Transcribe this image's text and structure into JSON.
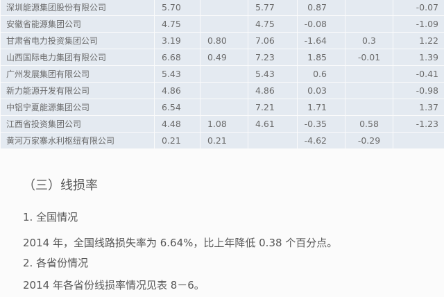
{
  "table": {
    "rows": [
      {
        "name": "深圳能源集团股份有限公司",
        "c1": "5.70",
        "c2": "",
        "c3": "5.77",
        "c4": "0.87",
        "c5": "",
        "c6": "-0.07"
      },
      {
        "name": "安徽省能源集团公司",
        "c1": "4.75",
        "c2": "",
        "c3": "4.75",
        "c4": "-0.08",
        "c5": "",
        "c6": "-1.09"
      },
      {
        "name": "甘肃省电力投资集团公司",
        "c1": "3.19",
        "c2": "0.80",
        "c3": "7.06",
        "c4": "-1.64",
        "c5": "0.3",
        "c6": "1.22"
      },
      {
        "name": "山西国际电力集团有限公司",
        "c1": "6.68",
        "c2": "0.49",
        "c3": "7.23",
        "c4": "1.85",
        "c5": "-0.01",
        "c6": "1.39"
      },
      {
        "name": "广州发展集团有限公司",
        "c1": "5.43",
        "c2": "",
        "c3": "5.43",
        "c4": "0.6",
        "c5": "",
        "c6": "-0.41"
      },
      {
        "name": "新力能源开发有限公司",
        "c1": "4.86",
        "c2": "",
        "c3": "4.86",
        "c4": "0.03",
        "c5": "",
        "c6": "-0.98"
      },
      {
        "name": "中铝宁夏能源集团公司",
        "c1": "6.54",
        "c2": "",
        "c3": "7.21",
        "c4": "1.71",
        "c5": "",
        "c6": "1.37"
      },
      {
        "name": "江西省投资集团公司",
        "c1": "4.48",
        "c2": "1.08",
        "c3": "4.61",
        "c4": "-0.35",
        "c5": "0.58",
        "c6": "-1.23"
      },
      {
        "name": "黄河万家寨水利枢纽有限公司",
        "c1": "0.21",
        "c2": "0.21",
        "c3": "",
        "c4": "-4.62",
        "c5": "-0.29",
        "c6": ""
      }
    ]
  },
  "section": {
    "heading": "（三）线损率",
    "sub1": "1. 全国情况",
    "para1": "2014 年，全国线路损失率为 6.64%，比上年降低 0.38 个百分点。",
    "sub2": "2. 各省份情况",
    "para2": "2014 年各省份线损率情况见表 8－6。"
  }
}
